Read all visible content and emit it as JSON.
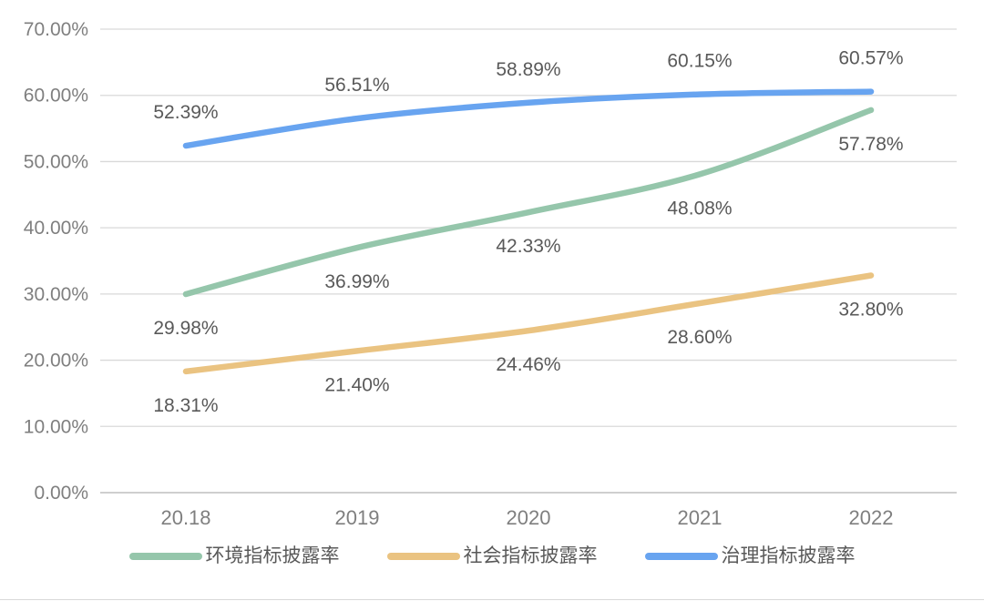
{
  "page": {
    "background": "#ffffff",
    "divider_color": "#d9d9d9"
  },
  "chart_data": {
    "type": "line",
    "title": "",
    "xlabel": "",
    "ylabel": "",
    "categories": [
      "20.18",
      "2019",
      "2020",
      "2021",
      "2022"
    ],
    "series": [
      {
        "name": "环境指标披露率",
        "color": "#95C6AB",
        "values": [
          29.98,
          36.99,
          42.33,
          48.08,
          57.78
        ],
        "data_labels": [
          "29.98%",
          "36.99%",
          "42.33%",
          "48.08%",
          "57.78%"
        ],
        "label_position": "below"
      },
      {
        "name": "社会指标披露率",
        "color": "#EAC381",
        "values": [
          18.31,
          21.4,
          24.46,
          28.6,
          32.8
        ],
        "data_labels": [
          "18.31%",
          "21.40%",
          "24.46%",
          "28.60%",
          "32.80%"
        ],
        "label_position": "below"
      },
      {
        "name": "治理指标披露率",
        "color": "#68A4F0",
        "values": [
          52.39,
          56.51,
          58.89,
          60.15,
          60.57
        ],
        "data_labels": [
          "52.39%",
          "56.51%",
          "58.89%",
          "60.15%",
          "60.57%"
        ],
        "label_position": "above"
      }
    ],
    "y_axis": {
      "min": 0,
      "max": 70,
      "step": 10,
      "tick_labels": [
        "0.00%",
        "10.00%",
        "20.00%",
        "30.00%",
        "40.00%",
        "50.00%",
        "60.00%",
        "70.00%"
      ]
    },
    "grid": true,
    "gridline_color": "#d9d9d9",
    "baseline_color": "#cfcfcf",
    "axis_text_color": "#7f7f7f",
    "data_label_color": "#595959",
    "legend_position": "bottom"
  }
}
